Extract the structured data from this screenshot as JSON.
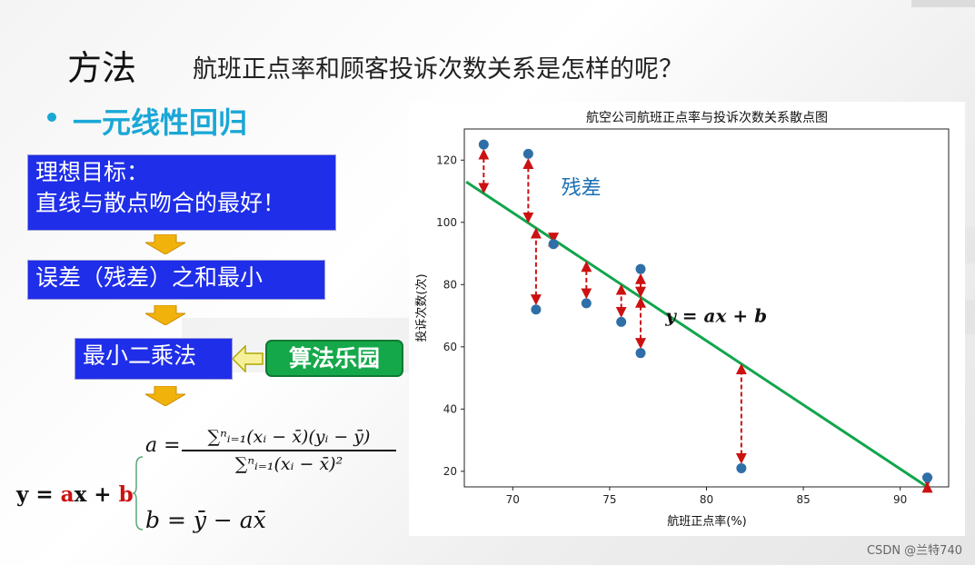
{
  "slide": {
    "title": "方法",
    "subtitle": "航班正点率和顾客投诉次数关系是怎样的呢？",
    "bullet": "一元线性回归"
  },
  "flow": {
    "box1_line1": "理想目标：",
    "box1_line2": "直线与散点吻合的最好！",
    "box2": "误差（残差）之和最小",
    "box3": "最小二乘法",
    "button": "算法乐园"
  },
  "formula": {
    "y_prefix": "y = ",
    "y_a": "a",
    "y_mid": "x + ",
    "y_b": "b",
    "a_lhs": "a =",
    "a_num": "∑ⁿᵢ₌₁(xᵢ − x̄)(yᵢ − ȳ)",
    "a_den": "∑ⁿᵢ₌₁(xᵢ − x̄)²",
    "b_eq": "b = ȳ − ax̄"
  },
  "watermark": "CSDN @兰特740",
  "chart_data": {
    "type": "scatter",
    "title": "航空公司航班正点率与投诉次数关系散点图",
    "xlabel": "航班正点率(%)",
    "ylabel": "投诉次数(次)",
    "xlim": [
      67.5,
      92.5
    ],
    "ylim": [
      15,
      130
    ],
    "xticks": [
      70,
      75,
      80,
      85,
      90
    ],
    "yticks": [
      20,
      40,
      60,
      80,
      100,
      120
    ],
    "points": [
      {
        "x": 68.5,
        "y": 125
      },
      {
        "x": 70.8,
        "y": 122
      },
      {
        "x": 71.2,
        "y": 72
      },
      {
        "x": 72.1,
        "y": 93
      },
      {
        "x": 73.8,
        "y": 74
      },
      {
        "x": 75.6,
        "y": 68
      },
      {
        "x": 76.6,
        "y": 85
      },
      {
        "x": 76.6,
        "y": 58
      },
      {
        "x": 81.8,
        "y": 21
      },
      {
        "x": 91.4,
        "y": 18
      }
    ],
    "regression": {
      "x0": 67.6,
      "y0": 113,
      "x1": 91.4,
      "y1": 15
    },
    "annotations": {
      "residual_label": "残差",
      "residual_label_pos": {
        "x": 72.5,
        "y": 109
      },
      "line_label": "y = ax + b",
      "line_label_pos": {
        "x": 80.5,
        "y": 68
      }
    },
    "colors": {
      "point": "#2f6fa8",
      "line": "#11a54c",
      "residual": "#cc1111",
      "label_blue": "#1a6fb5"
    },
    "grid": false
  }
}
